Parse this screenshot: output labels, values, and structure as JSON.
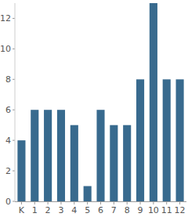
{
  "chart_data": {
    "type": "bar",
    "categories": [
      "K",
      "1",
      "2",
      "3",
      "4",
      "5",
      "6",
      "7",
      "8",
      "9",
      "10",
      "11",
      "12"
    ],
    "values": [
      4,
      6,
      6,
      6,
      5,
      1,
      6,
      5,
      5,
      8,
      13,
      8,
      8
    ],
    "color": "#386a8e",
    "ylim": [
      0,
      13
    ],
    "yticks": [
      0,
      2,
      4,
      6,
      8,
      10,
      12
    ],
    "grid": false
  }
}
